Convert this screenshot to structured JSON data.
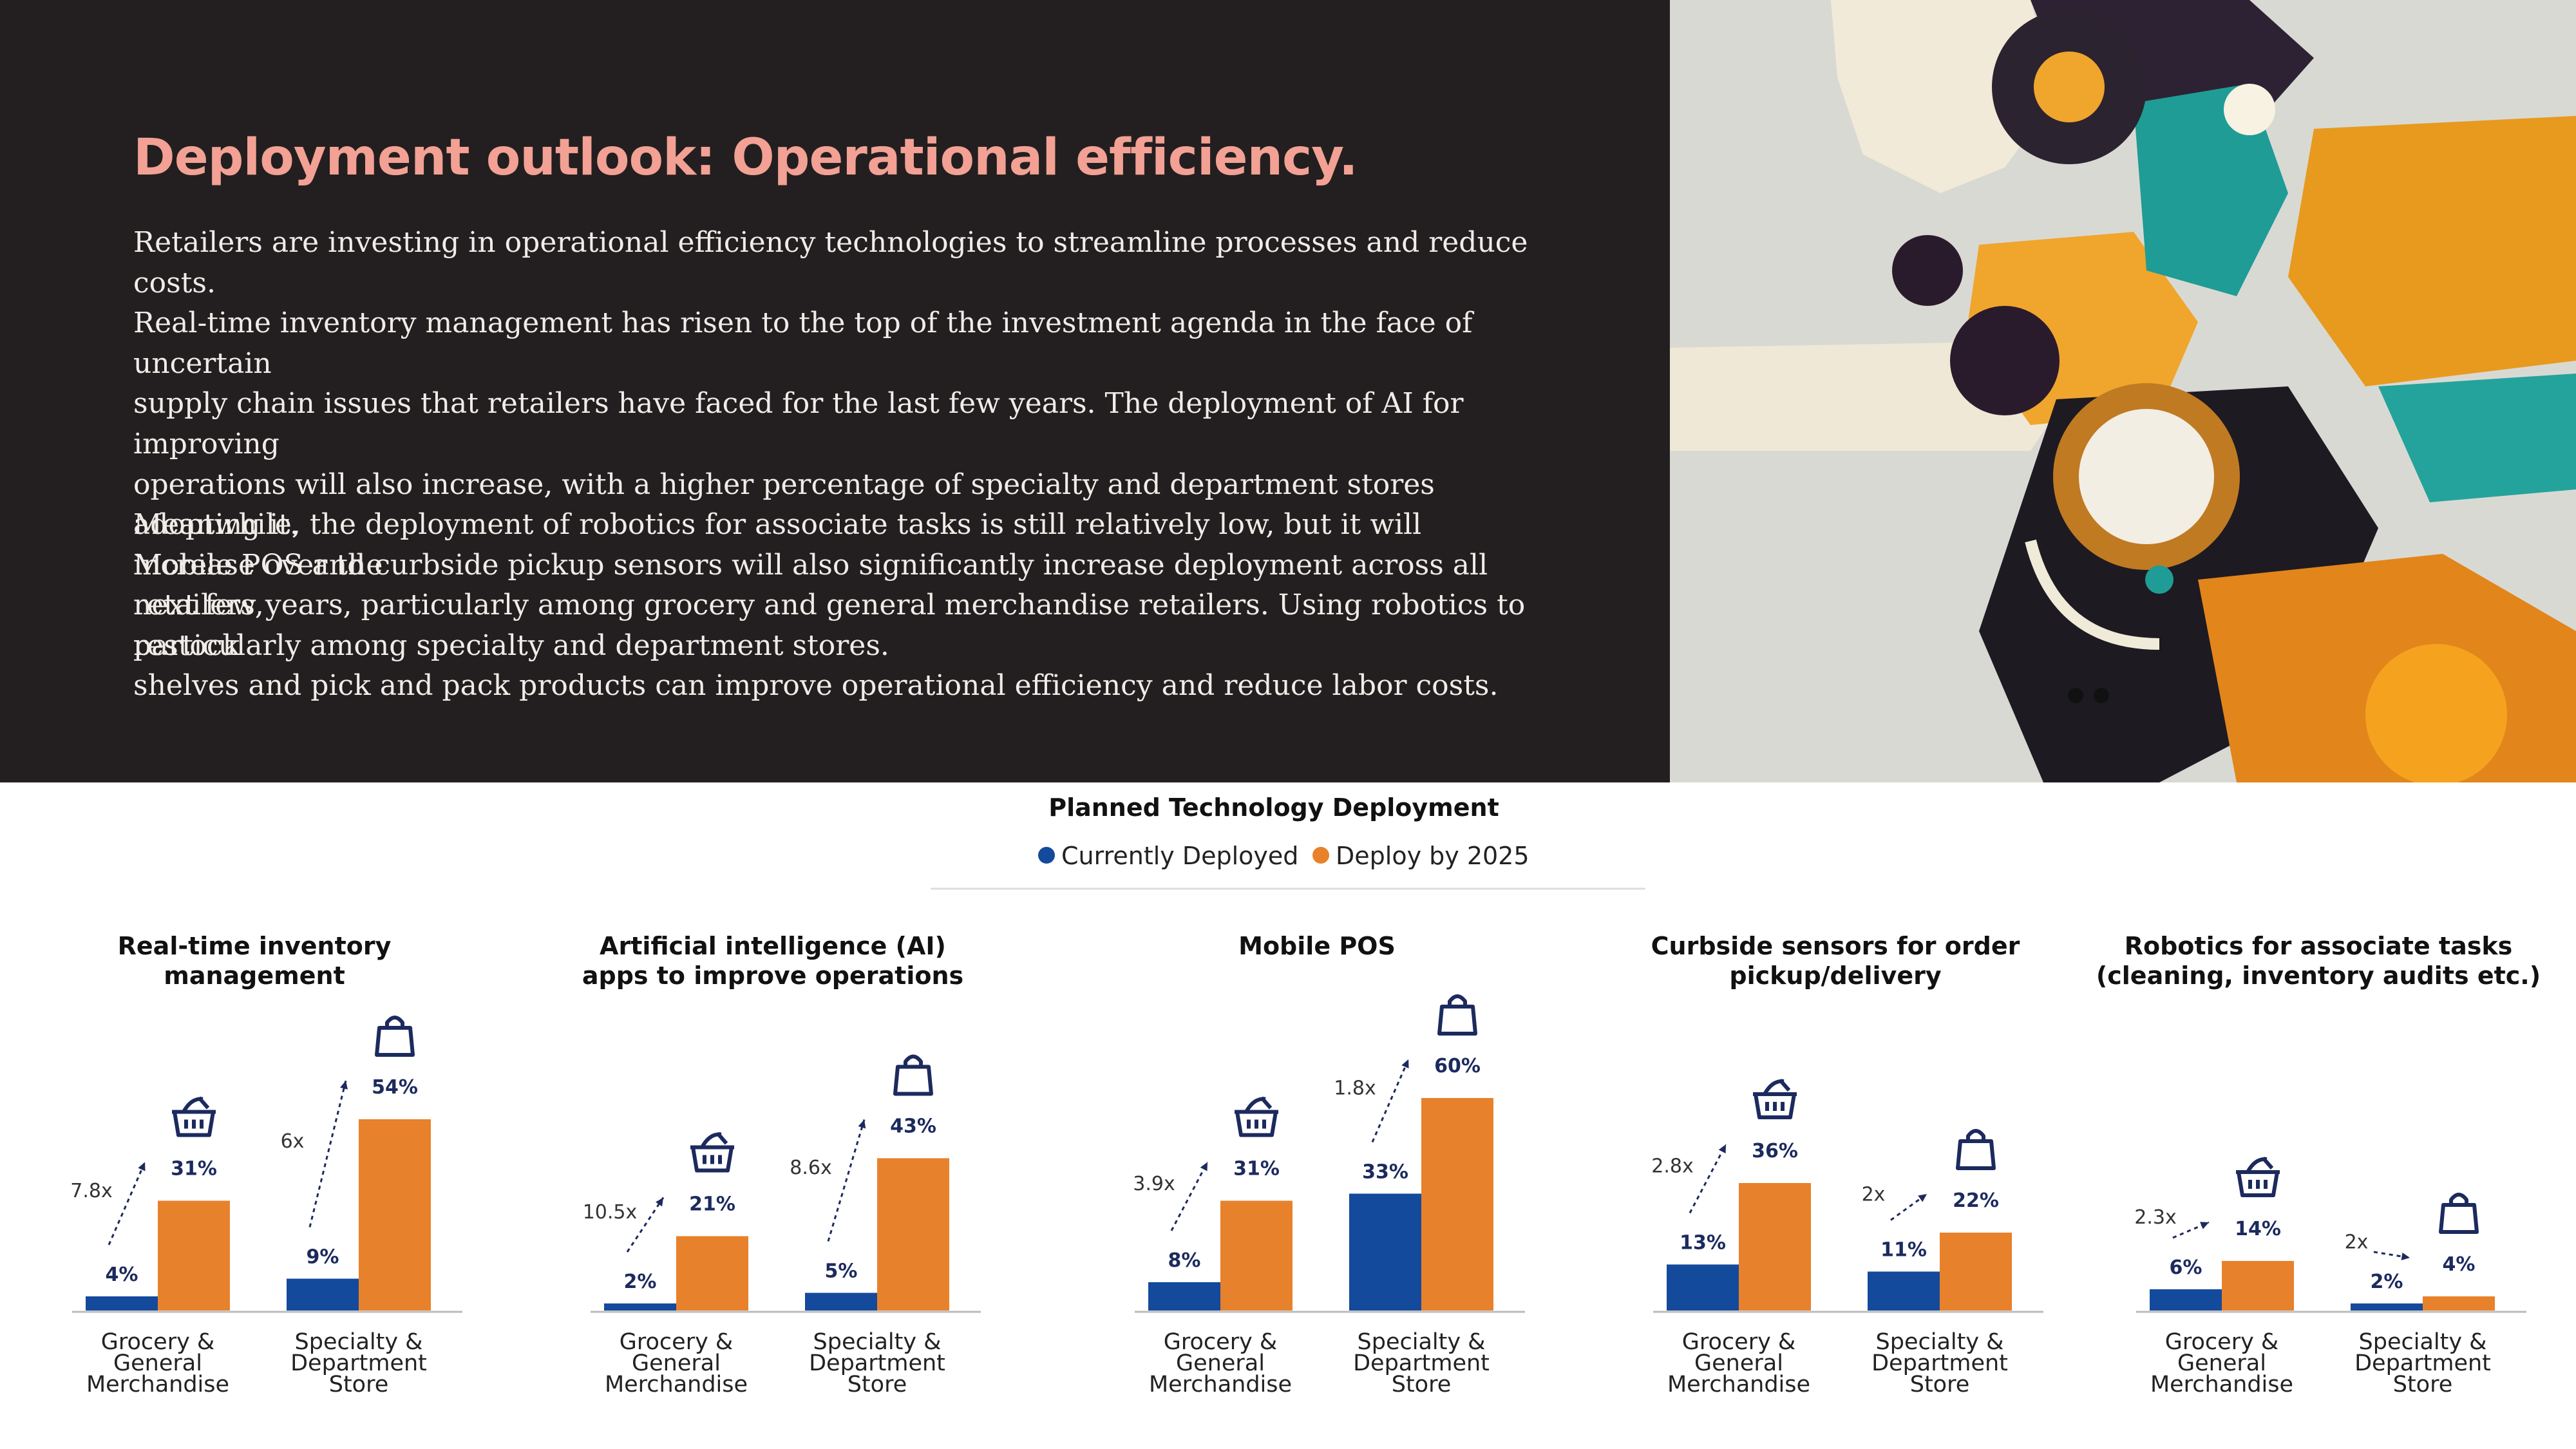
{
  "header": {
    "title": "Deployment outlook: Operational efficiency.",
    "para1_lines": [
      "Retailers are investing in operational efficiency technologies to streamline processes and reduce costs.",
      "Real-time inventory management has risen to the top of the investment agenda in the face of uncertain",
      "supply chain issues that retailers have faced for the last few years. The deployment of AI for improving",
      "operations will also increase, with a higher percentage of specialty and department stores adopting it.",
      "Mobile POS and curbside pickup sensors will also significantly increase deployment across all retailers,",
      "particularly among specialty and department stores."
    ],
    "para2_lines": [
      "Meanwhile, the deployment of robotics for associate tasks is still relatively low, but it will increase over the",
      "next few years, particularly among grocery and general merchandise retailers. Using robotics to restock",
      "shelves and pick and pack products can improve operational efficiency and reduce labor costs."
    ]
  },
  "artwork": {
    "description_icon": "abstract-gear-artwork"
  },
  "chart_header": {
    "title": "Planned Technology Deployment",
    "legend": [
      {
        "label": "Currently Deployed",
        "color": "#144a9c"
      },
      {
        "label": "Deploy by 2025",
        "color": "#e8812b"
      }
    ]
  },
  "chart_data": [
    {
      "type": "bar",
      "title_lines": [
        "Real-time inventory",
        "management"
      ],
      "categories": [
        [
          "Grocery &",
          "General",
          "Merchandise"
        ],
        [
          "Specialty &",
          "Department",
          "Store"
        ]
      ],
      "icons": [
        "basket-icon",
        "shopping-bag-icon"
      ],
      "series": [
        {
          "name": "Currently Deployed",
          "values": [
            4,
            9
          ]
        },
        {
          "name": "Deploy by 2025",
          "values": [
            31,
            54
          ]
        }
      ],
      "multipliers": [
        "7.8x",
        "6x"
      ]
    },
    {
      "type": "bar",
      "title_lines": [
        "Artificial intelligence (AI)",
        "apps to improve operations"
      ],
      "categories": [
        [
          "Grocery &",
          "General",
          "Merchandise"
        ],
        [
          "Specialty &",
          "Department",
          "Store"
        ]
      ],
      "icons": [
        "basket-icon",
        "shopping-bag-icon"
      ],
      "series": [
        {
          "name": "Currently Deployed",
          "values": [
            2,
            5
          ]
        },
        {
          "name": "Deploy by 2025",
          "values": [
            21,
            43
          ]
        }
      ],
      "multipliers": [
        "10.5x",
        "8.6x"
      ]
    },
    {
      "type": "bar",
      "title_lines": [
        "Mobile POS"
      ],
      "categories": [
        [
          "Grocery &",
          "General",
          "Merchandise"
        ],
        [
          "Specialty &",
          "Department",
          "Store"
        ]
      ],
      "icons": [
        "basket-icon",
        "shopping-bag-icon"
      ],
      "series": [
        {
          "name": "Currently Deployed",
          "values": [
            8,
            33
          ]
        },
        {
          "name": "Deploy by 2025",
          "values": [
            31,
            60
          ]
        }
      ],
      "multipliers": [
        "3.9x",
        "1.8x"
      ]
    },
    {
      "type": "bar",
      "title_lines": [
        "Curbside sensors for order",
        "pickup/delivery"
      ],
      "categories": [
        [
          "Grocery &",
          "General",
          "Merchandise"
        ],
        [
          "Specialty &",
          "Department",
          "Store"
        ]
      ],
      "icons": [
        "basket-icon",
        "shopping-bag-icon"
      ],
      "series": [
        {
          "name": "Currently Deployed",
          "values": [
            13,
            11
          ]
        },
        {
          "name": "Deploy by 2025",
          "values": [
            36,
            22
          ]
        }
      ],
      "multipliers": [
        "2.8x",
        "2x"
      ]
    },
    {
      "type": "bar",
      "title_lines": [
        "Robotics for associate tasks",
        "(cleaning, inventory audits etc.)"
      ],
      "categories": [
        [
          "Grocery &",
          "General",
          "Merchandise"
        ],
        [
          "Specialty &",
          "Department",
          "Store"
        ]
      ],
      "icons": [
        "basket-icon",
        "shopping-bag-icon"
      ],
      "series": [
        {
          "name": "Currently Deployed",
          "values": [
            6,
            2
          ]
        },
        {
          "name": "Deploy by 2025",
          "values": [
            14,
            4
          ]
        }
      ],
      "multipliers": [
        "2.3x",
        "2x"
      ]
    }
  ]
}
